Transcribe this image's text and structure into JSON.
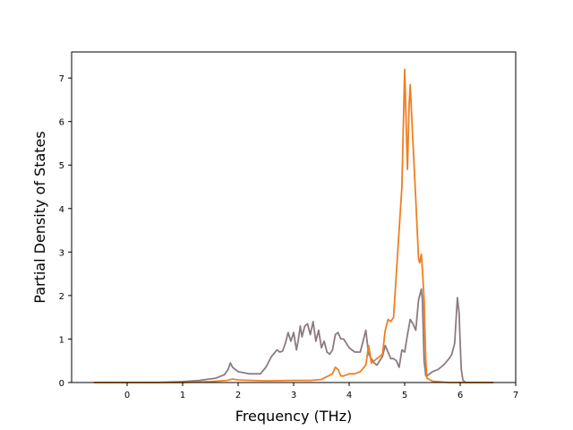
{
  "chart_data": {
    "type": "line",
    "title": "",
    "xlabel": "Frequency (THz)",
    "ylabel": "Partial Density of States",
    "xlim": [
      -1.0,
      7.0
    ],
    "ylim": [
      0,
      7.6
    ],
    "xticks": [
      0,
      1,
      2,
      3,
      4,
      5,
      6,
      7
    ],
    "yticks": [
      0,
      1,
      2,
      3,
      4,
      5,
      6,
      7
    ],
    "grid": false,
    "legend": "none",
    "series": [
      {
        "color": "#8c7b80",
        "x": [
          -0.6,
          0.0,
          0.5,
          1.0,
          1.3,
          1.6,
          1.75,
          1.82,
          1.86,
          1.9,
          2.0,
          2.2,
          2.4,
          2.5,
          2.6,
          2.7,
          2.75,
          2.8,
          2.85,
          2.9,
          2.95,
          3.0,
          3.05,
          3.08,
          3.12,
          3.15,
          3.2,
          3.25,
          3.3,
          3.35,
          3.4,
          3.45,
          3.5,
          3.55,
          3.6,
          3.65,
          3.7,
          3.75,
          3.8,
          3.85,
          3.9,
          3.95,
          4.0,
          4.1,
          4.2,
          4.3,
          4.35,
          4.4,
          4.45,
          4.5,
          4.6,
          4.65,
          4.7,
          4.75,
          4.8,
          4.85,
          4.9,
          4.95,
          5.0,
          5.05,
          5.1,
          5.15,
          5.2,
          5.25,
          5.3,
          5.32,
          5.35,
          5.38,
          5.4,
          5.5,
          5.6,
          5.7,
          5.8,
          5.85,
          5.9,
          5.95,
          5.98,
          6.0,
          6.02,
          6.05,
          6.1,
          6.6
        ],
        "values": [
          0,
          0,
          0,
          0.02,
          0.05,
          0.1,
          0.18,
          0.3,
          0.45,
          0.35,
          0.25,
          0.2,
          0.2,
          0.35,
          0.6,
          0.75,
          0.7,
          0.72,
          0.9,
          1.15,
          0.95,
          1.15,
          0.75,
          0.95,
          1.3,
          1.05,
          1.3,
          1.35,
          1.1,
          1.4,
          0.95,
          1.2,
          0.8,
          0.95,
          0.7,
          0.65,
          0.75,
          1.1,
          1.15,
          1.0,
          1.0,
          0.9,
          0.8,
          0.7,
          0.7,
          1.2,
          0.65,
          0.55,
          0.45,
          0.4,
          0.6,
          0.85,
          0.7,
          0.55,
          0.55,
          0.5,
          0.35,
          0.75,
          0.7,
          1.1,
          1.45,
          1.35,
          1.2,
          1.9,
          2.15,
          1.9,
          0.5,
          0.15,
          0.15,
          0.25,
          0.3,
          0.4,
          0.55,
          0.65,
          0.9,
          1.95,
          1.6,
          0.9,
          0.3,
          0.05,
          0,
          0
        ]
      },
      {
        "color": "#ef7f22",
        "x": [
          -0.6,
          0.0,
          1.0,
          1.5,
          1.8,
          1.9,
          2.0,
          2.5,
          3.0,
          3.3,
          3.5,
          3.7,
          3.75,
          3.8,
          3.85,
          3.9,
          4.0,
          4.1,
          4.2,
          4.3,
          4.35,
          4.4,
          4.5,
          4.6,
          4.65,
          4.7,
          4.75,
          4.8,
          4.85,
          4.9,
          4.95,
          5.0,
          5.02,
          5.05,
          5.08,
          5.1,
          5.15,
          5.2,
          5.25,
          5.27,
          5.3,
          5.32,
          5.35,
          5.38,
          5.4,
          5.5,
          5.6,
          5.7,
          5.8,
          5.9,
          5.95,
          6.0,
          6.05,
          6.1,
          6.6
        ],
        "values": [
          0,
          0,
          0,
          0.02,
          0.05,
          0.08,
          0.06,
          0.04,
          0.05,
          0.05,
          0.07,
          0.2,
          0.35,
          0.3,
          0.15,
          0.15,
          0.2,
          0.2,
          0.25,
          0.4,
          0.85,
          0.45,
          0.55,
          0.65,
          1.2,
          1.45,
          1.4,
          1.5,
          2.5,
          3.5,
          4.5,
          7.2,
          6.3,
          4.9,
          6.4,
          6.85,
          5.5,
          4.2,
          2.85,
          2.75,
          2.95,
          2.6,
          1.9,
          0.5,
          0.1,
          0.03,
          0.02,
          0.01,
          0,
          0,
          0,
          0,
          0,
          0,
          0
        ]
      }
    ]
  }
}
